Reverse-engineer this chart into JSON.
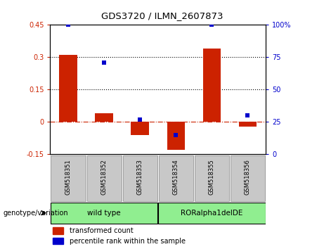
{
  "title": "GDS3720 / ILMN_2607873",
  "samples": [
    "GSM518351",
    "GSM518352",
    "GSM518353",
    "GSM518354",
    "GSM518355",
    "GSM518356"
  ],
  "red_values": [
    0.31,
    0.04,
    -0.06,
    -0.13,
    0.34,
    -0.02
  ],
  "blue_values": [
    100,
    71,
    27,
    15,
    100,
    30
  ],
  "ylim_left": [
    -0.15,
    0.45
  ],
  "ylim_right": [
    0,
    100
  ],
  "yticks_left": [
    -0.15,
    0.0,
    0.15,
    0.3,
    0.45
  ],
  "yticks_right": [
    0,
    25,
    50,
    75,
    100
  ],
  "yticklabels_right": [
    "0",
    "25",
    "50",
    "75",
    "100%"
  ],
  "hlines": [
    0.15,
    0.3
  ],
  "group_label": "genotype/variation",
  "legend_red": "transformed count",
  "legend_blue": "percentile rank within the sample",
  "bar_color": "#CC2200",
  "dot_color": "#0000CC",
  "bar_width": 0.5,
  "dot_size": 25,
  "zero_line_color": "#CC2200",
  "hline_color": "#000000",
  "background_plot": "#FFFFFF",
  "gray_bg": "#C8C8C8",
  "green_bg": "#90EE90",
  "group1_label": "wild type",
  "group2_label": "RORalpha1delDE"
}
